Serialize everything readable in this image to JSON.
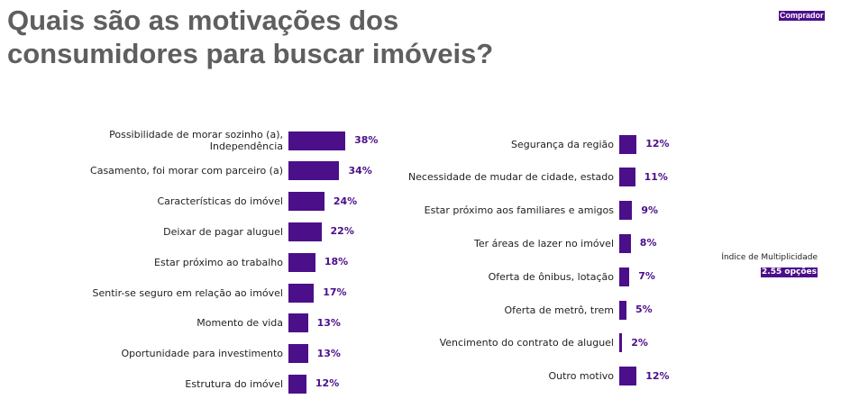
{
  "title_lines": [
    "Quais são as motivações dos",
    "consumidores para buscar imóveis?"
  ],
  "tag": "Comprador",
  "multiplicity": {
    "label": "Índice de Multiplicidade",
    "value": "2.55 opções"
  },
  "colors": {
    "bar": "#4b0f8a",
    "title": "#5f5f5f",
    "text": "#222222"
  },
  "chart_data": [
    {
      "type": "bar",
      "orientation": "horizontal",
      "categories": [
        [
          "Possibilidade de morar sozinho (a),",
          "Independência"
        ],
        [
          "Casamento, foi morar com parceiro (a)"
        ],
        [
          "Características do imóvel"
        ],
        [
          "Deixar de pagar aluguel"
        ],
        [
          "Estar próximo ao trabalho"
        ],
        [
          "Sentir-se seguro em relação ao imóvel"
        ],
        [
          "Momento de vida"
        ],
        [
          "Oportunidade para investimento"
        ],
        [
          "Estrutura do imóvel"
        ]
      ],
      "values": [
        38,
        34,
        24,
        22,
        18,
        17,
        13,
        13,
        12
      ],
      "value_labels": [
        "38%",
        "34%",
        "24%",
        "22%",
        "18%",
        "17%",
        "13%",
        "13%",
        "12%"
      ],
      "unit": "%"
    },
    {
      "type": "bar",
      "orientation": "horizontal",
      "categories": [
        [
          "Segurança da região"
        ],
        [
          "Necessidade de mudar de cidade, estado"
        ],
        [
          "Estar próximo aos familiares e amigos"
        ],
        [
          "Ter áreas de lazer no imóvel"
        ],
        [
          "Oferta de ônibus, lotação"
        ],
        [
          "Oferta de metrô, trem"
        ],
        [
          "Vencimento do contrato de aluguel"
        ],
        [
          "Outro motivo"
        ]
      ],
      "values": [
        12,
        11,
        9,
        8,
        7,
        5,
        2,
        12
      ],
      "value_labels": [
        "12%",
        "11%",
        "9%",
        "8%",
        "7%",
        "5%",
        "2%",
        "12%"
      ],
      "unit": "%"
    }
  ]
}
